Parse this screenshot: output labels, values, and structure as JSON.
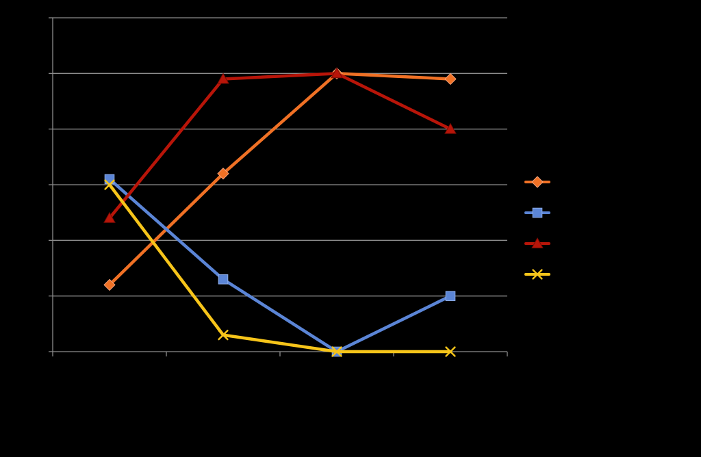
{
  "chart_data": {
    "type": "line",
    "title": "",
    "xlabel": "",
    "ylabel": "",
    "categories": [
      "",
      "",
      "",
      ""
    ],
    "ylim": [
      0,
      6
    ],
    "ytick_count": 7,
    "grid": true,
    "legend_position": "right",
    "series": [
      {
        "color": "#F07125",
        "marker": "diamond",
        "values": [
          1.2,
          3.2,
          5.0,
          4.9
        ]
      },
      {
        "color": "#5B85D6",
        "marker": "square",
        "values": [
          3.1,
          1.3,
          0.0,
          1.0
        ]
      },
      {
        "color": "#B81509",
        "marker": "triangle",
        "values": [
          2.4,
          4.9,
          5.0,
          4.0
        ]
      },
      {
        "color": "#F7C51A",
        "marker": "x",
        "values": [
          3.0,
          0.3,
          0.0,
          0.0
        ]
      }
    ]
  },
  "colors": {
    "background": "#000000",
    "gridline": "#8C8C8C",
    "axis": "#8C8C8C"
  }
}
